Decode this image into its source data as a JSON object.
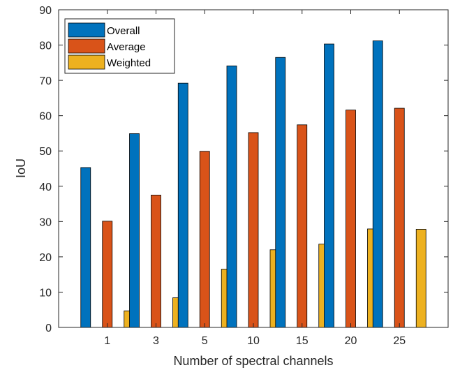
{
  "chart_data": {
    "type": "bar",
    "categories": [
      "1",
      "3",
      "5",
      "10",
      "15",
      "20",
      "25"
    ],
    "series": [
      {
        "name": "Overall",
        "color": "#0072BD",
        "values": [
          45.3,
          54.9,
          69.2,
          74.1,
          76.5,
          80.3,
          81.2
        ]
      },
      {
        "name": "Average",
        "color": "#D95319",
        "values": [
          30.1,
          37.5,
          49.9,
          55.2,
          57.4,
          61.6,
          62.1
        ]
      },
      {
        "name": "Weighted",
        "color": "#EDB120",
        "values": [
          4.7,
          8.4,
          16.5,
          22.0,
          23.6,
          27.9,
          27.8
        ]
      }
    ],
    "xlabel": "Number of spectral channels",
    "ylabel": "IoU",
    "ylim": [
      0,
      90
    ],
    "yticks": [
      "0",
      "10",
      "20",
      "30",
      "40",
      "50",
      "60",
      "70",
      "80",
      "90"
    ],
    "grid": false,
    "legend_position": "top-left"
  }
}
